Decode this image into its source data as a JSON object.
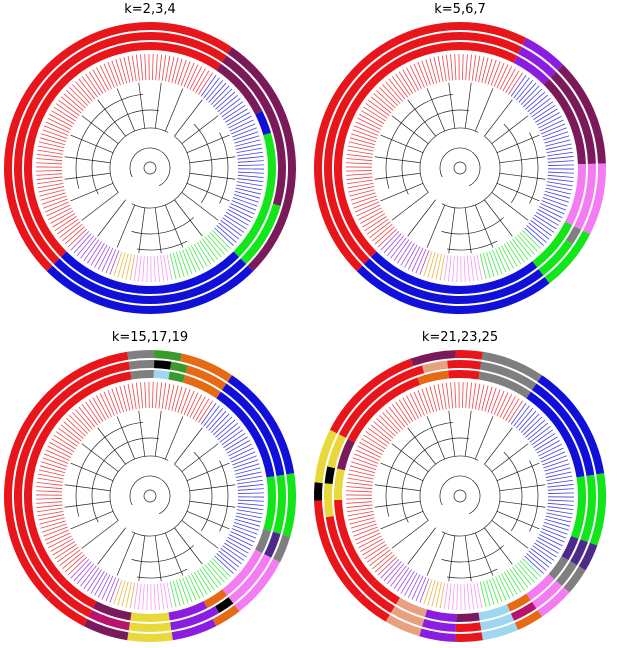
{
  "panels": [
    {
      "id": "p1",
      "title": "k=2,3,4",
      "rings": [
        [
          [
            "#e8151b",
            0,
            0.47
          ],
          [
            "#7b1a5a",
            0.47,
            0.75
          ],
          [
            "#1010d8",
            0.75,
            1.0
          ]
        ],
        [
          [
            "#e8151b",
            0,
            0.47
          ],
          [
            "#7b1a5a",
            0.47,
            0.67
          ],
          [
            "#12e61a",
            0.67,
            0.75
          ],
          [
            "#1010d8",
            0.75,
            1.0
          ]
        ],
        [
          [
            "#e8151b",
            0,
            0.47
          ],
          [
            "#7b1a5a",
            0.47,
            0.55
          ],
          [
            "#1010d8",
            0.55,
            0.58
          ],
          [
            "#12e61a",
            0.58,
            0.75
          ],
          [
            "#1010d8",
            0.75,
            1.0
          ]
        ]
      ]
    },
    {
      "id": "p2",
      "title": "k=5,6,7",
      "rings": [
        [
          [
            "#e8151b",
            0,
            0.45
          ],
          [
            "#8a1de0",
            0.45,
            0.5
          ],
          [
            "#7b1a5a",
            0.5,
            0.62
          ],
          [
            "#f47cf2",
            0.62,
            0.7
          ],
          [
            "#12e61a",
            0.7,
            0.77
          ],
          [
            "#1010d8",
            0.77,
            1.0
          ]
        ],
        [
          [
            "#e8151b",
            0,
            0.45
          ],
          [
            "#8a1de0",
            0.45,
            0.5
          ],
          [
            "#7b1a5a",
            0.5,
            0.62
          ],
          [
            "#f47cf2",
            0.62,
            0.7
          ],
          [
            "#7f7f7f",
            0.7,
            0.72
          ],
          [
            "#12e61a",
            0.72,
            0.77
          ],
          [
            "#1010d8",
            0.77,
            1.0
          ]
        ],
        [
          [
            "#e8151b",
            0,
            0.45
          ],
          [
            "#8a1de0",
            0.45,
            0.5
          ],
          [
            "#7b1a5a",
            0.5,
            0.62
          ],
          [
            "#f47cf2",
            0.62,
            0.7
          ],
          [
            "#12e61a",
            0.7,
            0.77
          ],
          [
            "#1010d8",
            0.77,
            1.0
          ]
        ]
      ]
    },
    {
      "id": "p3",
      "title": "k=15,17,19",
      "rings": [
        [
          [
            "#e8151b",
            0,
            0.35
          ],
          [
            "#7f7f7f",
            0.35,
            0.38
          ],
          [
            "#3a9a2b",
            0.38,
            0.41
          ],
          [
            "#e66a14",
            0.41,
            0.47
          ],
          [
            "#1010d8",
            0.47,
            0.6
          ],
          [
            "#12e61a",
            0.6,
            0.67
          ],
          [
            "#7f7f7f",
            0.67,
            0.7
          ],
          [
            "#f47cf2",
            0.7,
            0.77
          ],
          [
            "#e66a14",
            0.77,
            0.8
          ],
          [
            "#8a1de0",
            0.8,
            0.85
          ],
          [
            "#e8d83a",
            0.85,
            0.9
          ],
          [
            "#7b1a5a",
            0.9,
            0.95
          ],
          [
            "#e8151b",
            0.95,
            1.0
          ]
        ],
        [
          [
            "#e8151b",
            0,
            0.35
          ],
          [
            "#7f7f7f",
            0.35,
            0.38
          ],
          [
            "#000000",
            0.38,
            0.4
          ],
          [
            "#3a9a2b",
            0.4,
            0.42
          ],
          [
            "#e66a14",
            0.42,
            0.47
          ],
          [
            "#1010d8",
            0.47,
            0.6
          ],
          [
            "#12e61a",
            0.6,
            0.67
          ],
          [
            "#4b2a8a",
            0.67,
            0.7
          ],
          [
            "#f47cf2",
            0.7,
            0.77
          ],
          [
            "#000000",
            0.77,
            0.79
          ],
          [
            "#8a1de0",
            0.79,
            0.85
          ],
          [
            "#e8d83a",
            0.85,
            0.9
          ],
          [
            "#b8146b",
            0.9,
            0.95
          ],
          [
            "#e8151b",
            0.95,
            1.0
          ]
        ],
        [
          [
            "#e8151b",
            0,
            0.35
          ],
          [
            "#7f7f7f",
            0.35,
            0.38
          ],
          [
            "#9fd6f0",
            0.38,
            0.4
          ],
          [
            "#3a9a2b",
            0.4,
            0.42
          ],
          [
            "#e66a14",
            0.42,
            0.47
          ],
          [
            "#1010d8",
            0.47,
            0.6
          ],
          [
            "#12e61a",
            0.6,
            0.67
          ],
          [
            "#7f7f7f",
            0.67,
            0.7
          ],
          [
            "#f47cf2",
            0.7,
            0.77
          ],
          [
            "#e66a14",
            0.77,
            0.8
          ],
          [
            "#8a1de0",
            0.8,
            0.85
          ],
          [
            "#e8d83a",
            0.85,
            0.9
          ],
          [
            "#7b1a5a",
            0.9,
            0.95
          ],
          [
            "#e8151b",
            0.95,
            1.0
          ]
        ]
      ]
    },
    {
      "id": "p4",
      "title": "k=21,23,25",
      "rings": [
        [
          [
            "#e8151b",
            0,
            0.12
          ],
          [
            "#000000",
            0.12,
            0.14
          ],
          [
            "#e8d83a",
            0.14,
            0.2
          ],
          [
            "#e8151b",
            0.2,
            0.32
          ],
          [
            "#7b1a5a",
            0.32,
            0.37
          ],
          [
            "#e8151b",
            0.37,
            0.4
          ],
          [
            "#7f7f7f",
            0.4,
            0.47
          ],
          [
            "#1010d8",
            0.47,
            0.6
          ],
          [
            "#12e61a",
            0.6,
            0.68
          ],
          [
            "#4b2a8a",
            0.68,
            0.71
          ],
          [
            "#7f7f7f",
            0.71,
            0.74
          ],
          [
            "#f47cf2",
            0.74,
            0.78
          ],
          [
            "#e66a14",
            0.78,
            0.81
          ],
          [
            "#9fd6f0",
            0.81,
            0.85
          ],
          [
            "#e8151b",
            0.85,
            0.88
          ],
          [
            "#8a1de0",
            0.88,
            0.92
          ],
          [
            "#e7a080",
            0.92,
            0.96
          ],
          [
            "#e8151b",
            0.96,
            1.0
          ]
        ],
        [
          [
            "#e8151b",
            0,
            0.1
          ],
          [
            "#e8d83a",
            0.1,
            0.14
          ],
          [
            "#000000",
            0.14,
            0.16
          ],
          [
            "#e8d83a",
            0.16,
            0.2
          ],
          [
            "#e8151b",
            0.2,
            0.33
          ],
          [
            "#e7a080",
            0.33,
            0.36
          ],
          [
            "#e8151b",
            0.36,
            0.4
          ],
          [
            "#7f7f7f",
            0.4,
            0.47
          ],
          [
            "#1010d8",
            0.47,
            0.6
          ],
          [
            "#12e61a",
            0.6,
            0.68
          ],
          [
            "#4b2a8a",
            0.68,
            0.71
          ],
          [
            "#7f7f7f",
            0.71,
            0.74
          ],
          [
            "#f47cf2",
            0.74,
            0.78
          ],
          [
            "#b8146b",
            0.78,
            0.81
          ],
          [
            "#9fd6f0",
            0.81,
            0.85
          ],
          [
            "#e8151b",
            0.85,
            0.88
          ],
          [
            "#8a1de0",
            0.88,
            0.92
          ],
          [
            "#e7a080",
            0.92,
            0.96
          ],
          [
            "#e8151b",
            0.96,
            1.0
          ]
        ],
        [
          [
            "#e8151b",
            0,
            0.12
          ],
          [
            "#e8d83a",
            0.12,
            0.16
          ],
          [
            "#7b1a5a",
            0.16,
            0.2
          ],
          [
            "#e8151b",
            0.2,
            0.32
          ],
          [
            "#e66a14",
            0.32,
            0.36
          ],
          [
            "#e8151b",
            0.36,
            0.4
          ],
          [
            "#7f7f7f",
            0.4,
            0.47
          ],
          [
            "#1010d8",
            0.47,
            0.6
          ],
          [
            "#12e61a",
            0.6,
            0.68
          ],
          [
            "#4b2a8a",
            0.68,
            0.71
          ],
          [
            "#7f7f7f",
            0.71,
            0.74
          ],
          [
            "#f47cf2",
            0.74,
            0.78
          ],
          [
            "#e66a14",
            0.78,
            0.81
          ],
          [
            "#9fd6f0",
            0.81,
            0.85
          ],
          [
            "#7b1a5a",
            0.85,
            0.88
          ],
          [
            "#8a1de0",
            0.88,
            0.92
          ],
          [
            "#e7a080",
            0.92,
            0.96
          ],
          [
            "#e8151b",
            0.96,
            1.0
          ]
        ]
      ]
    }
  ],
  "clades": [
    {
      "color": "#e8151b",
      "start": 0.0,
      "end": 0.47
    },
    {
      "color": "#1010d8",
      "start": 0.47,
      "end": 0.75
    },
    {
      "color": "#12e61a",
      "start": 0.75,
      "end": 0.84
    },
    {
      "color": "#f47cf2",
      "start": 0.84,
      "end": 0.9
    },
    {
      "color": "#e6a014",
      "start": 0.9,
      "end": 0.93
    },
    {
      "color": "#8a1de0",
      "start": 0.93,
      "end": 1.0
    }
  ]
}
